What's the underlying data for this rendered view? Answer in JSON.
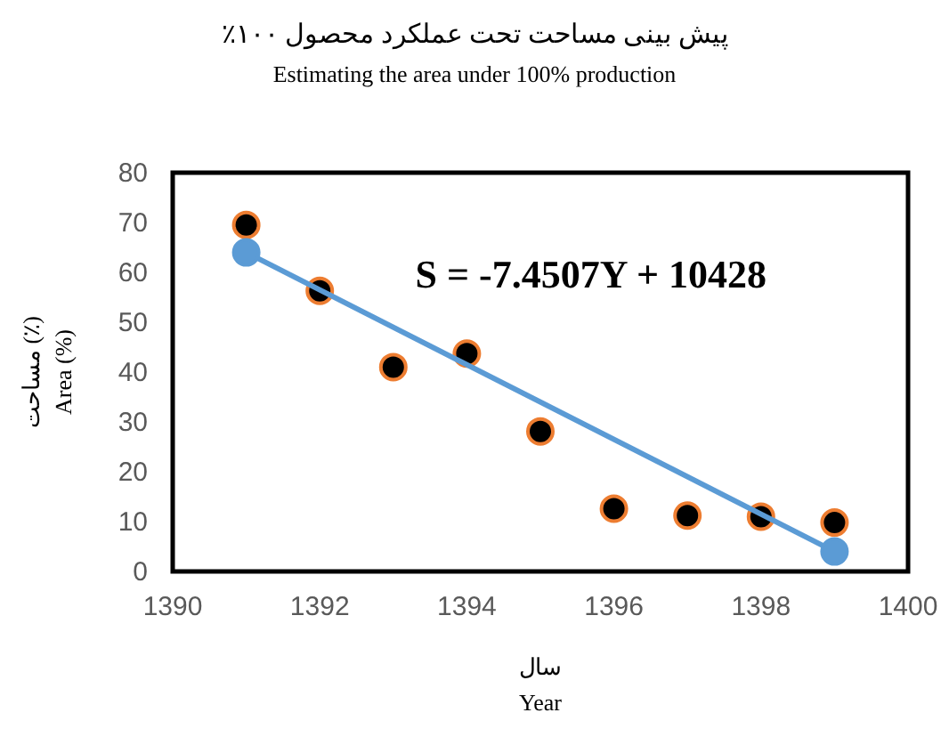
{
  "chart_data": {
    "type": "scatter",
    "title": "پیش بینی مساحت تحت عملکرد محصول ۱۰۰٪",
    "subtitle": "Estimating the area under 100% production",
    "xlabel": "سال\nYear",
    "ylabel": "مساحت (٪)\nArea (%)",
    "annotations": [
      "S = -7.4507Y + 10428"
    ],
    "x": [
      1391,
      1392,
      1393,
      1394,
      1395,
      1396,
      1397,
      1398,
      1399
    ],
    "series": [
      {
        "type": "scatter",
        "color": "#000000",
        "values": [
          69.5,
          56.3,
          41,
          43.7,
          28.1,
          12.6,
          11.2,
          11,
          9.8
        ],
        "marker": "circle"
      },
      {
        "type": "line",
        "color": "#5b9bd5",
        "x": [
          1391,
          1399
        ],
        "values": [
          64,
          4
        ],
        "marker": "circle"
      }
    ],
    "xlim": [
      1390,
      1400
    ],
    "xticks": [
      1390,
      1392,
      1394,
      1396,
      1398,
      1400
    ],
    "ylim": [
      0,
      80
    ],
    "yticks": [
      0,
      10,
      20,
      30,
      40,
      50,
      60,
      70,
      80
    ],
    "grid": false
  }
}
